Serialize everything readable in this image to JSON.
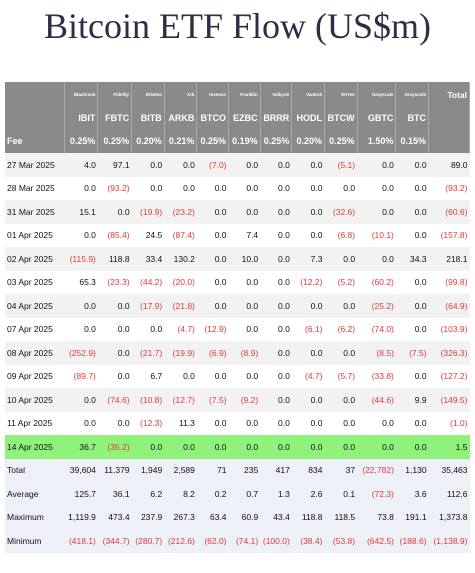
{
  "title": "Bitcoin ETF Flow (US$m)",
  "table": {
    "issuers": [
      null,
      "Blackrock",
      "Fidelity",
      "Bitwise",
      "Ark",
      "Invesco",
      "Franklin",
      "Valkyrie",
      "VanEck",
      "WTree",
      "Grayscale",
      "Grayscale",
      "Total"
    ],
    "tickers": [
      null,
      "IBIT",
      "FBTC",
      "BITB",
      "ARKB",
      "BTCO",
      "EZBC",
      "BRRR",
      "HODL",
      "BTCW",
      "GBTC",
      "BTC",
      null
    ],
    "fee": [
      "Fee",
      "0.25%",
      "0.25%",
      "0.20%",
      "0.21%",
      "0.25%",
      "0.19%",
      "0.25%",
      "0.20%",
      "0.25%",
      "1.50%",
      "0.15%",
      null
    ],
    "rows": [
      [
        "27 Mar 2025",
        "4.0",
        "97.1",
        "0.0",
        "0.0",
        "(7.0)",
        "0.0",
        "0.0",
        "0.0",
        "(5.1)",
        "0.0",
        "0.0",
        "89.0"
      ],
      [
        "28 Mar 2025",
        "0.0",
        "(93.2)",
        "0.0",
        "0.0",
        "0.0",
        "0.0",
        "0.0",
        "0.0",
        "0.0",
        "0.0",
        "0.0",
        "(93.2)"
      ],
      [
        "31 Mar 2025",
        "15.1",
        "0.0",
        "(19.9)",
        "(23.2)",
        "0.0",
        "0.0",
        "0.0",
        "0.0",
        "(32.6)",
        "0.0",
        "0.0",
        "(60.6)"
      ],
      [
        "01 Apr 2025",
        "0.0",
        "(85.4)",
        "24.5",
        "(87.4)",
        "0.0",
        "7.4",
        "0.0",
        "0.0",
        "(6.8)",
        "(10.1)",
        "0.0",
        "(157.8)"
      ],
      [
        "02 Apr 2025",
        "(115.9)",
        "118.8",
        "33.4",
        "130.2",
        "0.0",
        "10.0",
        "0.0",
        "7.3",
        "0.0",
        "0.0",
        "34.3",
        "218.1"
      ],
      [
        "03 Apr 2025",
        "65.3",
        "(23.3)",
        "(44.2)",
        "(20.0)",
        "0.0",
        "0.0",
        "0.0",
        "(12.2)",
        "(5.2)",
        "(60.2)",
        "0.0",
        "(99.8)"
      ],
      [
        "04 Apr 2025",
        "0.0",
        "0.0",
        "(17.9)",
        "(21.8)",
        "0.0",
        "0.0",
        "0.0",
        "0.0",
        "0.0",
        "(25.2)",
        "0.0",
        "(64.9)"
      ],
      [
        "07 Apr 2025",
        "0.0",
        "0.0",
        "0.0",
        "(4.7)",
        "(12.9)",
        "0.0",
        "0.0",
        "(6.1)",
        "(6.2)",
        "(74.0)",
        "0.0",
        "(103.9)"
      ],
      [
        "08 Apr 2025",
        "(252.9)",
        "0.0",
        "(21.7)",
        "(19.9)",
        "(6.9)",
        "(8.9)",
        "0.0",
        "0.0",
        "0.0",
        "(8.5)",
        "(7.5)",
        "(326.3)"
      ],
      [
        "09 Apr 2025",
        "(89.7)",
        "0.0",
        "6.7",
        "0.0",
        "0.0",
        "0.0",
        "0.0",
        "(4.7)",
        "(5.7)",
        "(33.8)",
        "0.0",
        "(127.2)"
      ],
      [
        "10 Apr 2025",
        "0.0",
        "(74.6)",
        "(10.8)",
        "(12.7)",
        "(7.5)",
        "(9.2)",
        "0.0",
        "0.0",
        "0.0",
        "(44.6)",
        "9.9",
        "(149.5)"
      ],
      [
        "11 Apr 2025",
        "0.0",
        "0.0",
        "(12.3)",
        "11.3",
        "0.0",
        "0.0",
        "0.0",
        "0.0",
        "0.0",
        "0.0",
        "0.0",
        "(1.0)"
      ],
      [
        "14 Apr 2025",
        "36.7",
        "(35.2)",
        "0.0",
        "0.0",
        "0.0",
        "0.0",
        "0.0",
        "0.0",
        "0.0",
        "0.0",
        "0.0",
        "1.5"
      ]
    ],
    "summary": [
      [
        "Total",
        "39,604",
        "11,379",
        "1,949",
        "2,589",
        "71",
        "235",
        "417",
        "834",
        "37",
        "(22,782)",
        "1,130",
        "35,463"
      ],
      [
        "Average",
        "125.7",
        "36.1",
        "6.2",
        "8.2",
        "0.2",
        "0.7",
        "1.3",
        "2.6",
        "0.1",
        "(72.3)",
        "3.6",
        "112.6"
      ],
      [
        "Maximum",
        "1,119.9",
        "473.4",
        "237.9",
        "267.3",
        "63.4",
        "60.9",
        "43.4",
        "118.8",
        "118.5",
        "73.8",
        "191.1",
        "1,373.8"
      ],
      [
        "Minimum",
        "(418.1)",
        "(344.7)",
        "(280.7)",
        "(212.6)",
        "(62.0)",
        "(74.1)",
        "(100.0)",
        "(38.4)",
        "(53.8)",
        "(642.5)",
        "(188.6)",
        "(1,138.9)"
      ]
    ]
  }
}
